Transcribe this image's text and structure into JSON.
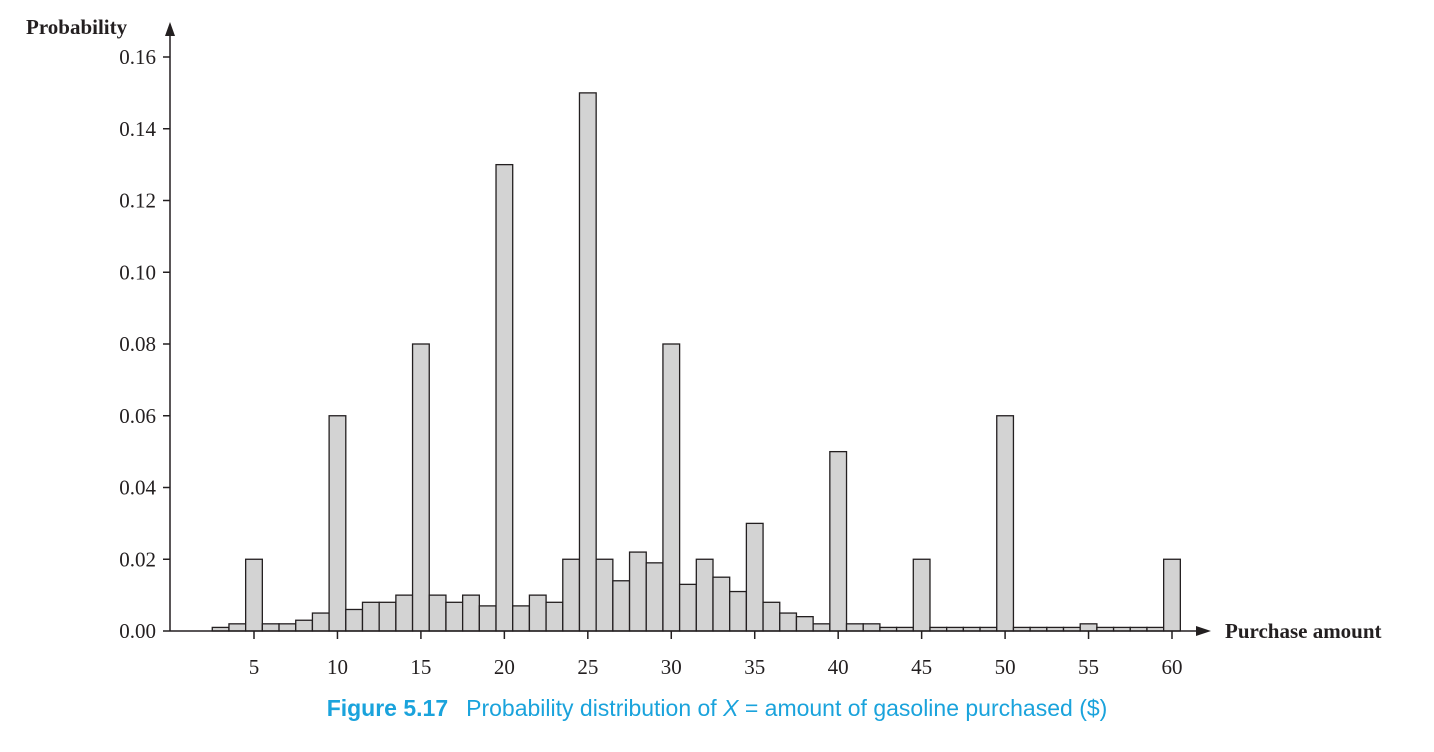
{
  "chart_data": {
    "type": "bar",
    "ylabel": "Probability",
    "xlabel": "Purchase amount",
    "ylim": [
      0,
      0.16
    ],
    "xlim": [
      2,
      61
    ],
    "y_ticks": [
      "0.00",
      "0.02",
      "0.04",
      "0.06",
      "0.08",
      "0.10",
      "0.12",
      "0.14",
      "0.16"
    ],
    "y_tick_values": [
      0,
      0.02,
      0.04,
      0.06,
      0.08,
      0.1,
      0.12,
      0.14,
      0.16
    ],
    "x_ticks": [
      "5",
      "10",
      "15",
      "20",
      "25",
      "30",
      "35",
      "40",
      "45",
      "50",
      "55",
      "60"
    ],
    "x_tick_values": [
      5,
      10,
      15,
      20,
      25,
      30,
      35,
      40,
      45,
      50,
      55,
      60
    ],
    "x": [
      3,
      4,
      5,
      6,
      7,
      8,
      9,
      10,
      11,
      12,
      13,
      14,
      15,
      16,
      17,
      18,
      19,
      20,
      21,
      22,
      23,
      24,
      25,
      26,
      27,
      28,
      29,
      30,
      31,
      32,
      33,
      34,
      35,
      36,
      37,
      38,
      39,
      40,
      41,
      42,
      43,
      44,
      45,
      46,
      47,
      48,
      49,
      50,
      51,
      52,
      53,
      54,
      55,
      56,
      57,
      58,
      59,
      60
    ],
    "values": [
      0.001,
      0.002,
      0.02,
      0.002,
      0.002,
      0.003,
      0.005,
      0.06,
      0.006,
      0.008,
      0.008,
      0.01,
      0.08,
      0.01,
      0.008,
      0.01,
      0.007,
      0.13,
      0.007,
      0.01,
      0.008,
      0.02,
      0.15,
      0.02,
      0.014,
      0.022,
      0.019,
      0.08,
      0.013,
      0.02,
      0.015,
      0.011,
      0.03,
      0.008,
      0.005,
      0.004,
      0.002,
      0.05,
      0.002,
      0.002,
      0.001,
      0.001,
      0.02,
      0.001,
      0.001,
      0.001,
      0.001,
      0.06,
      0.001,
      0.001,
      0.001,
      0.001,
      0.002,
      0.001,
      0.001,
      0.001,
      0.001,
      0.02
    ],
    "bar_color": "#d3d3d3",
    "edge_color": "#231f20",
    "grid": false
  },
  "caption": {
    "label": "Figure 5.17",
    "text_before": "Probability distribution of ",
    "variable": "X",
    "text_after": " = amount of gasoline purchased ($)",
    "color": "#1aa3dc"
  }
}
